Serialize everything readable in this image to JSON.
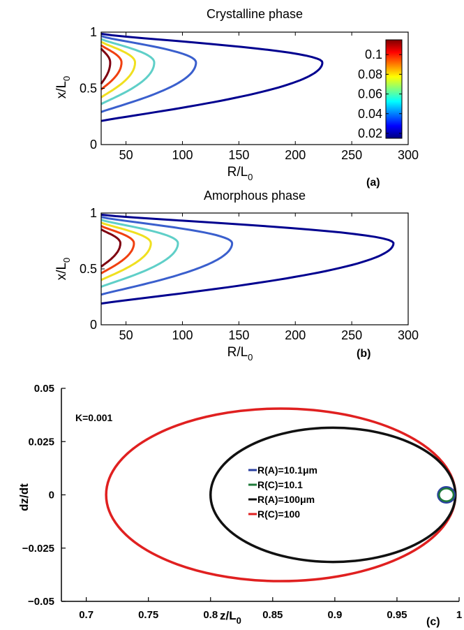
{
  "charts": [
    {
      "title": "Crystalline phase",
      "panel_label": "(a)",
      "xlabel": "R/L",
      "xlabel_sub": "0",
      "ylabel": "x/L",
      "ylabel_sub": "0",
      "xlim": [
        28,
        300
      ],
      "ylim": [
        0,
        1
      ],
      "xticks": [
        50,
        100,
        150,
        200,
        250,
        300
      ],
      "yticks": [
        0,
        0.5,
        1
      ],
      "colorbar": {
        "ticks": [
          "0.1",
          "0.08",
          "0.06",
          "0.04",
          "0.02"
        ],
        "tick_values": [
          0.1,
          0.08,
          0.06,
          0.04,
          0.02
        ],
        "range": [
          0.015,
          0.115
        ],
        "stops": [
          "#00007f",
          "#0000ff",
          "#007fff",
          "#00ffff",
          "#7fff7f",
          "#ffff00",
          "#ff7f00",
          "#ff0000",
          "#7f0000"
        ]
      },
      "curves": [
        {
          "color": "#00008f",
          "r_max": 224,
          "y_top": 0.985,
          "y_bot": 0.21,
          "y_apex": 0.73
        },
        {
          "color": "#3a5fcd",
          "r_max": 112,
          "y_top": 0.965,
          "y_bot": 0.29,
          "y_apex": 0.73
        },
        {
          "color": "#5fcfc8",
          "r_max": 75,
          "y_top": 0.94,
          "y_bot": 0.36,
          "y_apex": 0.73
        },
        {
          "color": "#f0e020",
          "r_max": 58,
          "y_top": 0.915,
          "y_bot": 0.42,
          "y_apex": 0.73
        },
        {
          "color": "#f04010",
          "r_max": 46,
          "y_top": 0.885,
          "y_bot": 0.49,
          "y_apex": 0.73
        },
        {
          "color": "#7f0010",
          "r_max": 36,
          "y_top": 0.855,
          "y_bot": 0.54,
          "y_apex": 0.73
        }
      ]
    },
    {
      "title": "Amorphous phase",
      "panel_label": "(b)",
      "xlabel": "R/L",
      "xlabel_sub": "0",
      "ylabel": "x/L",
      "ylabel_sub": "0",
      "xlim": [
        28,
        300
      ],
      "ylim": [
        0,
        1
      ],
      "xticks": [
        50,
        100,
        150,
        200,
        250,
        300
      ],
      "yticks": [
        0,
        0.5,
        1
      ],
      "curves": [
        {
          "color": "#00008f",
          "r_max": 287,
          "y_top": 0.985,
          "y_bot": 0.19,
          "y_apex": 0.73
        },
        {
          "color": "#3a5fcd",
          "r_max": 144,
          "y_top": 0.965,
          "y_bot": 0.27,
          "y_apex": 0.73
        },
        {
          "color": "#5fcfc8",
          "r_max": 96,
          "y_top": 0.94,
          "y_bot": 0.34,
          "y_apex": 0.73
        },
        {
          "color": "#f0e020",
          "r_max": 72,
          "y_top": 0.915,
          "y_bot": 0.4,
          "y_apex": 0.73
        },
        {
          "color": "#f04010",
          "r_max": 57,
          "y_top": 0.885,
          "y_bot": 0.46,
          "y_apex": 0.73
        },
        {
          "color": "#7f0010",
          "r_max": 45,
          "y_top": 0.855,
          "y_bot": 0.52,
          "y_apex": 0.73
        }
      ]
    },
    {
      "title": "",
      "panel_label": "(c)",
      "annotation": "K=0.001",
      "xlabel": "z/L",
      "xlabel_sub": "0",
      "ylabel": "dz/dt",
      "xlim": [
        0.68,
        1.0
      ],
      "ylim": [
        -0.05,
        0.05
      ],
      "xticks": [
        "0.7",
        "0.75",
        "0.8",
        "0.85",
        "0.9",
        "0.95",
        "1"
      ],
      "xtick_values": [
        0.7,
        0.75,
        0.8,
        0.85,
        0.9,
        0.95,
        1.0
      ],
      "yticks": [
        "0.05",
        "0.025",
        "0",
        "−0.025",
        "−0.05"
      ],
      "ytick_values": [
        0.05,
        0.025,
        0,
        -0.025,
        -0.05
      ],
      "legend_position": "center",
      "series": [
        {
          "name": "R(A)=10.1μm",
          "color": "#2a3fa0",
          "cx": 0.9897,
          "rx": 0.0068,
          "ry": 0.0037,
          "width": 2.5
        },
        {
          "name": "R(C)=10.1",
          "color": "#1f7a3a",
          "cx": 0.9897,
          "rx": 0.0058,
          "ry": 0.003,
          "width": 2.5
        },
        {
          "name": "R(A)=100μm",
          "color": "#111111",
          "cx": 0.8985,
          "rx": 0.0985,
          "ry": 0.0315,
          "width": 3.5
        },
        {
          "name": "R(C)=100",
          "color": "#e02020",
          "cx": 0.8565,
          "rx": 0.1405,
          "ry": 0.0405,
          "width": 3.5
        }
      ]
    }
  ]
}
